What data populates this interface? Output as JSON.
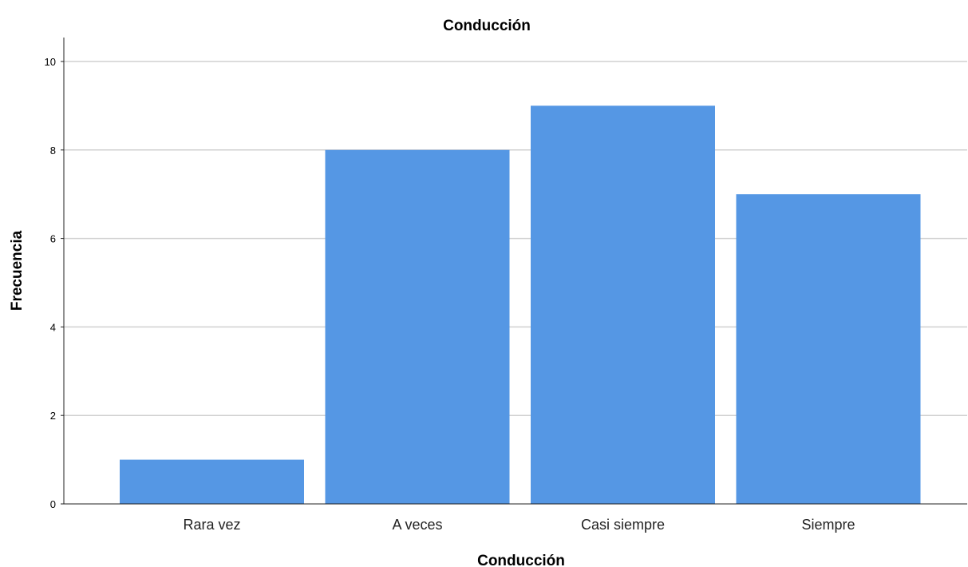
{
  "chart_data": {
    "type": "bar",
    "title": "Conducción",
    "xlabel": "Conducción",
    "ylabel": "Frecuencia",
    "categories": [
      "Rara vez",
      "A veces",
      "Casi siempre",
      "Siempre"
    ],
    "values": [
      1,
      8,
      9,
      7
    ],
    "yticks": [
      "0",
      "2",
      "4",
      "6",
      "8",
      "10"
    ],
    "ylim": [
      0,
      10.5
    ],
    "grid": true,
    "bar_color": "#5597e4",
    "grid_color": "#d0d0d0"
  }
}
